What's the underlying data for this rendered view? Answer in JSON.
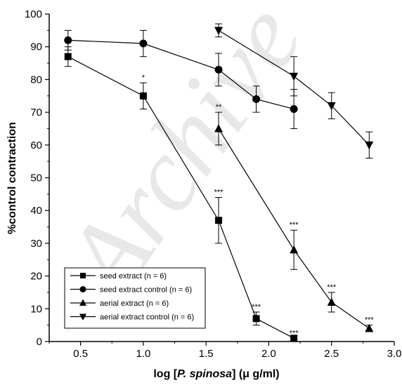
{
  "chart_data": {
    "type": "line",
    "title": "",
    "xlabel_prefix": "log [",
    "xlabel_italic": "P. spinosa",
    "xlabel_suffix": "] (μ g/ml)",
    "ylabel": "%control contraction",
    "xlim": [
      0.25,
      3.0
    ],
    "ylim": [
      0,
      100
    ],
    "xticks": [
      0.5,
      1.0,
      1.5,
      2.0,
      2.5,
      3.0
    ],
    "xtick_labels": [
      "0.5",
      "1.0",
      "1.5",
      "2.0",
      "2.5",
      "3.0"
    ],
    "yticks": [
      0,
      10,
      20,
      30,
      40,
      50,
      60,
      70,
      80,
      90,
      100
    ],
    "ytick_labels": [
      "0",
      "10",
      "20",
      "30",
      "40",
      "50",
      "60",
      "70",
      "80",
      "90",
      "100"
    ],
    "grid": false,
    "legend_position": "bottom-left",
    "watermark": "Archive",
    "series": [
      {
        "name": "seed extract (n = 6)",
        "marker": "square",
        "points": [
          {
            "x": 0.4,
            "y": 87,
            "err": 3,
            "sig": ""
          },
          {
            "x": 1.0,
            "y": 75,
            "err": 4,
            "sig": "*"
          },
          {
            "x": 1.6,
            "y": 37,
            "err": 7,
            "sig": "***"
          },
          {
            "x": 1.9,
            "y": 7,
            "err": 2,
            "sig": "***"
          },
          {
            "x": 2.2,
            "y": 1,
            "err": 0,
            "sig": "***"
          }
        ]
      },
      {
        "name": "seed extract control (n = 6)",
        "marker": "circle",
        "points": [
          {
            "x": 0.4,
            "y": 92,
            "err": 3,
            "sig": ""
          },
          {
            "x": 1.0,
            "y": 91,
            "err": 4,
            "sig": ""
          },
          {
            "x": 1.6,
            "y": 83,
            "err": 5,
            "sig": ""
          },
          {
            "x": 1.9,
            "y": 74,
            "err": 4,
            "sig": ""
          },
          {
            "x": 2.2,
            "y": 71,
            "err": 6,
            "sig": ""
          }
        ]
      },
      {
        "name": "aerial extract (n = 6)",
        "marker": "triangle-up",
        "points": [
          {
            "x": 1.6,
            "y": 65,
            "err": 5,
            "sig": "**"
          },
          {
            "x": 2.2,
            "y": 28,
            "err": 6,
            "sig": "***"
          },
          {
            "x": 2.5,
            "y": 12,
            "err": 3,
            "sig": "***"
          },
          {
            "x": 2.8,
            "y": 4,
            "err": 1,
            "sig": "***"
          }
        ]
      },
      {
        "name": "aerial extract control (n = 6)",
        "marker": "triangle-down",
        "points": [
          {
            "x": 1.6,
            "y": 95,
            "err": 2,
            "sig": ""
          },
          {
            "x": 2.2,
            "y": 81,
            "err": 6,
            "sig": ""
          },
          {
            "x": 2.5,
            "y": 72,
            "err": 4,
            "sig": ""
          },
          {
            "x": 2.8,
            "y": 60,
            "err": 4,
            "sig": ""
          }
        ]
      }
    ]
  }
}
